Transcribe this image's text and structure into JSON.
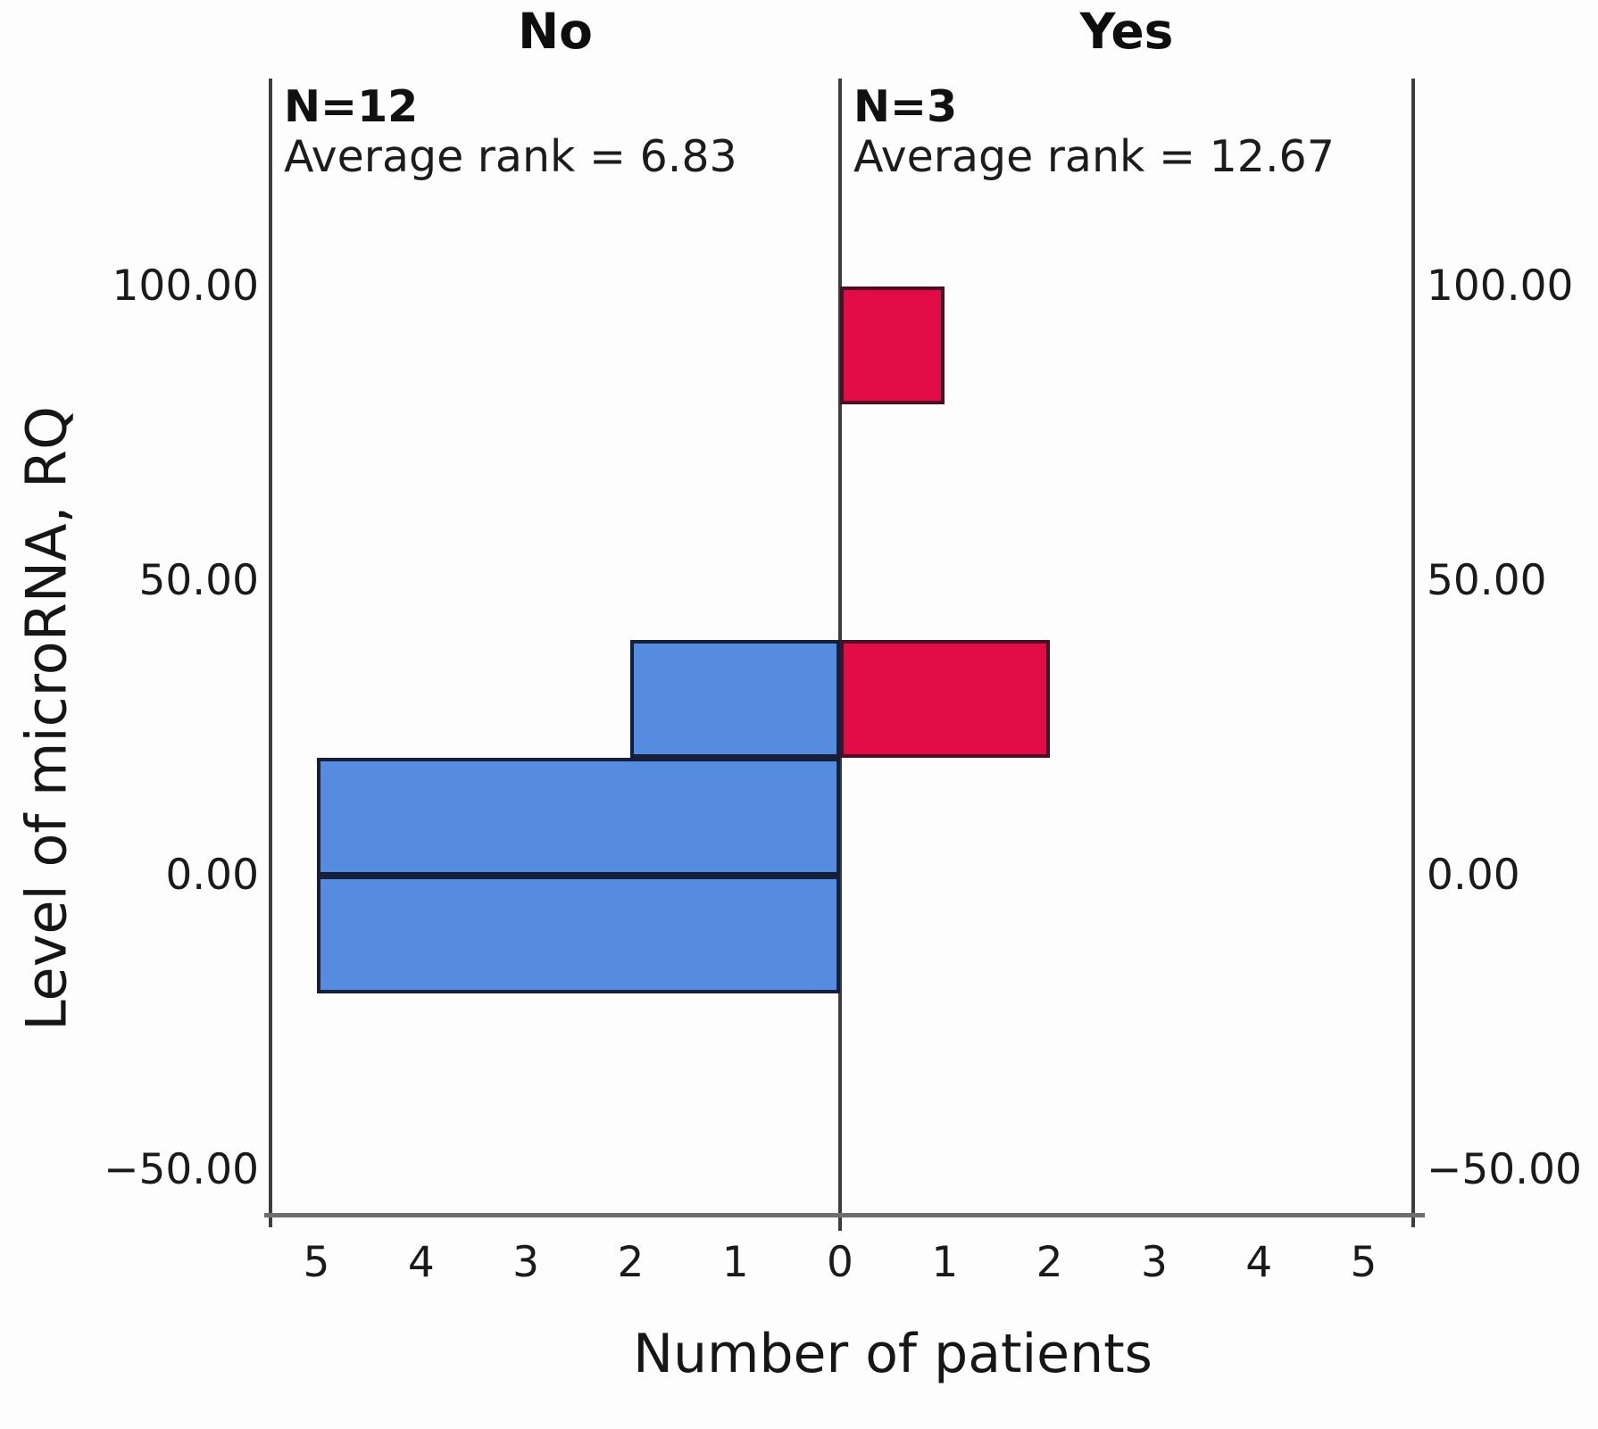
{
  "chart_data": {
    "type": "bar",
    "variant": "back-to-back-histogram-pyramid",
    "xlabel": "Number of patients",
    "ylabel": "Level of microRNA, RQ",
    "bin_width": 20,
    "ylim": [
      -57,
      112
    ],
    "xlim_per_panel": [
      0,
      5.45
    ],
    "grid": false,
    "legend": null,
    "axis_color": "#3d3d3d",
    "baseline_color": "#6e6e6e",
    "y_ticks": [
      {
        "v": 100,
        "label": "100.00"
      },
      {
        "v": 50,
        "label": "50.00"
      },
      {
        "v": 0,
        "label": "0.00"
      },
      {
        "v": -50,
        "label": "−50.00"
      }
    ],
    "x_ticks": {
      "left": [
        5,
        4,
        3,
        2,
        1
      ],
      "center": "0",
      "right": [
        1,
        2,
        3,
        4,
        5
      ]
    },
    "panels": [
      {
        "id": "no",
        "header": "No",
        "n": 12,
        "n_label": "N=12",
        "avg_rank": 6.83,
        "avg_label": "Average rank = 6.83",
        "side": "left",
        "fill": "#568ce0",
        "stroke": "#141f3a",
        "bins": [
          {
            "from": -20,
            "to": 0,
            "count": 5
          },
          {
            "from": 0,
            "to": 20,
            "count": 5
          },
          {
            "from": 20,
            "to": 40,
            "count": 2
          }
        ]
      },
      {
        "id": "yes",
        "header": "Yes",
        "n": 3,
        "n_label": "N=3",
        "avg_rank": 12.67,
        "avg_label": "Average rank = 12.67",
        "side": "right",
        "fill": "#e10c45",
        "stroke": "#530a24",
        "bins": [
          {
            "from": 20,
            "to": 40,
            "count": 2
          },
          {
            "from": 80,
            "to": 100,
            "count": 1
          }
        ]
      }
    ]
  }
}
